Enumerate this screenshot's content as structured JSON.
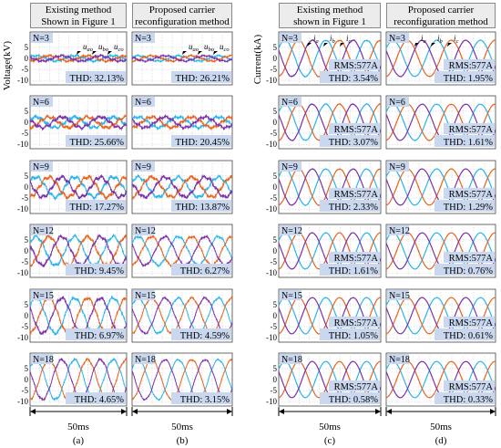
{
  "headers": [
    [
      "Existing method",
      "Shown in Figure 1"
    ],
    [
      "Proposed carrier",
      "reconfiguration method"
    ],
    [
      "Existing method",
      "shown in Figure 1"
    ],
    [
      "Proposed carrier",
      "reconfiguration method"
    ]
  ],
  "panel_labels": [
    "(a)",
    "(b)",
    "(c)",
    "(d)"
  ],
  "time_span_label": "50ms",
  "colors": {
    "phase_a": "#2bb5e8",
    "phase_b": "#e8641e",
    "phase_c": "#7a32a8",
    "label_bg": "#c9d7ef"
  },
  "chart_data": [
    {
      "type": "line",
      "quantity": "voltage",
      "ylabel": "Voltage(kV)",
      "yticks": [
        "5",
        "0",
        "-5",
        "-10"
      ],
      "ylim": [
        -12,
        12
      ],
      "series_names": [
        "u_ao",
        "u_bo",
        "u_co"
      ],
      "series_labels": [
        {
          "main": "u",
          "sub": "ao"
        },
        {
          "main": "u",
          "sub": "bo"
        },
        {
          "main": "u",
          "sub": "co"
        }
      ],
      "grid": true,
      "rows": [
        {
          "N": "N=3",
          "thd_a": "THD: 32.13%",
          "thd_b": "THD: 26.21%",
          "amplitude_kV": 1.2
        },
        {
          "N": "N=6",
          "thd_a": "THD: 25.66%",
          "thd_b": "THD: 20.45%",
          "amplitude_kV": 2.4
        },
        {
          "N": "N=9",
          "thd_a": "THD: 17.27%",
          "thd_b": "THD: 13.87%",
          "amplitude_kV": 4.5
        },
        {
          "N": "N=12",
          "thd_a": "THD: 9.45%",
          "thd_b": "THD: 6.27%",
          "amplitude_kV": 6.5
        },
        {
          "N": "N=15",
          "thd_a": "THD: 6.97%",
          "thd_b": "THD: 4.59%",
          "amplitude_kV": 8.0
        },
        {
          "N": "N=18",
          "thd_a": "THD: 4.65%",
          "thd_b": "THD: 3.15%",
          "amplitude_kV": 9.0
        }
      ]
    },
    {
      "type": "line",
      "quantity": "current",
      "ylabel": "Current(kA)",
      "yticks": [
        "5",
        "0",
        "-5",
        "-10"
      ],
      "ylim": [
        -12,
        12
      ],
      "series_names": [
        "i_a",
        "i_b",
        "i_c"
      ],
      "series_labels": [
        {
          "main": "i",
          "sub": "a"
        },
        {
          "main": "i",
          "sub": "b"
        },
        {
          "main": "i",
          "sub": "c"
        }
      ],
      "grid": true,
      "rms": "RMS:577A",
      "amplitude_kA": 8.2,
      "rows": [
        {
          "N": "N=3",
          "thd_c": "THD: 3.54%",
          "thd_d": "THD: 1.95%"
        },
        {
          "N": "N=6",
          "thd_c": "THD: 3.07%",
          "thd_d": "THD: 1.61%"
        },
        {
          "N": "N=9",
          "thd_c": "THD: 2.33%",
          "thd_d": "THD: 1.29%"
        },
        {
          "N": "N=12",
          "thd_c": "THD: 1.61%",
          "thd_d": "THD: 0.76%"
        },
        {
          "N": "N=15",
          "thd_c": "THD: 1.05%",
          "thd_d": "THD: 0.61%"
        },
        {
          "N": "N=18",
          "thd_c": "THD: 0.58%",
          "thd_d": "THD: 0.33%"
        }
      ]
    }
  ]
}
